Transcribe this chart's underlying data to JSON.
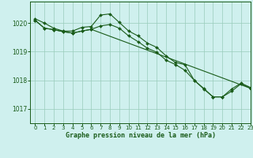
{
  "title": "Graphe pression niveau de la mer (hPa)",
  "bg_color": "#cff0ee",
  "plot_bg_color": "#cff0ee",
  "line_color": "#1a5c1a",
  "grid_color": "#99ccbb",
  "xlim": [
    -0.5,
    23
  ],
  "ylim": [
    1016.5,
    1020.75
  ],
  "yticks": [
    1017,
    1018,
    1019,
    1020
  ],
  "xticks": [
    0,
    1,
    2,
    3,
    4,
    5,
    6,
    7,
    8,
    9,
    10,
    11,
    12,
    13,
    14,
    15,
    16,
    17,
    18,
    19,
    20,
    21,
    22,
    23
  ],
  "series": [
    {
      "x": [
        0,
        1,
        2,
        3,
        4,
        5,
        6,
        7,
        8,
        9,
        10,
        11,
        12,
        13,
        14,
        15,
        16,
        17,
        18,
        19,
        20,
        21,
        22,
        23
      ],
      "y": [
        1020.15,
        1020.0,
        1019.82,
        1019.72,
        1019.72,
        1019.85,
        1019.88,
        1020.28,
        1020.32,
        1020.02,
        1019.72,
        1019.55,
        1019.3,
        1019.15,
        1018.85,
        1018.62,
        1018.55,
        1018.0,
        1017.72,
        1017.42,
        1017.42,
        1017.7,
        1017.9,
        1017.75
      ]
    },
    {
      "x": [
        0,
        1,
        2,
        3,
        4,
        5,
        6,
        7,
        8,
        9,
        10,
        11,
        12,
        13,
        14,
        15,
        16,
        17,
        18,
        19,
        20,
        21,
        22,
        23
      ],
      "y": [
        1020.1,
        1019.82,
        1019.77,
        1019.7,
        1019.65,
        1019.72,
        1019.78,
        1019.9,
        1019.95,
        1019.82,
        1019.55,
        1019.35,
        1019.12,
        1018.98,
        1018.7,
        1018.55,
        1018.35,
        1018.0,
        1017.7,
        1017.42,
        1017.42,
        1017.62,
        1017.88,
        1017.72
      ]
    },
    {
      "x": [
        0,
        1,
        2,
        3,
        4,
        5,
        6,
        23
      ],
      "y": [
        1020.1,
        1019.82,
        1019.77,
        1019.7,
        1019.65,
        1019.72,
        1019.78,
        1017.72
      ]
    }
  ]
}
